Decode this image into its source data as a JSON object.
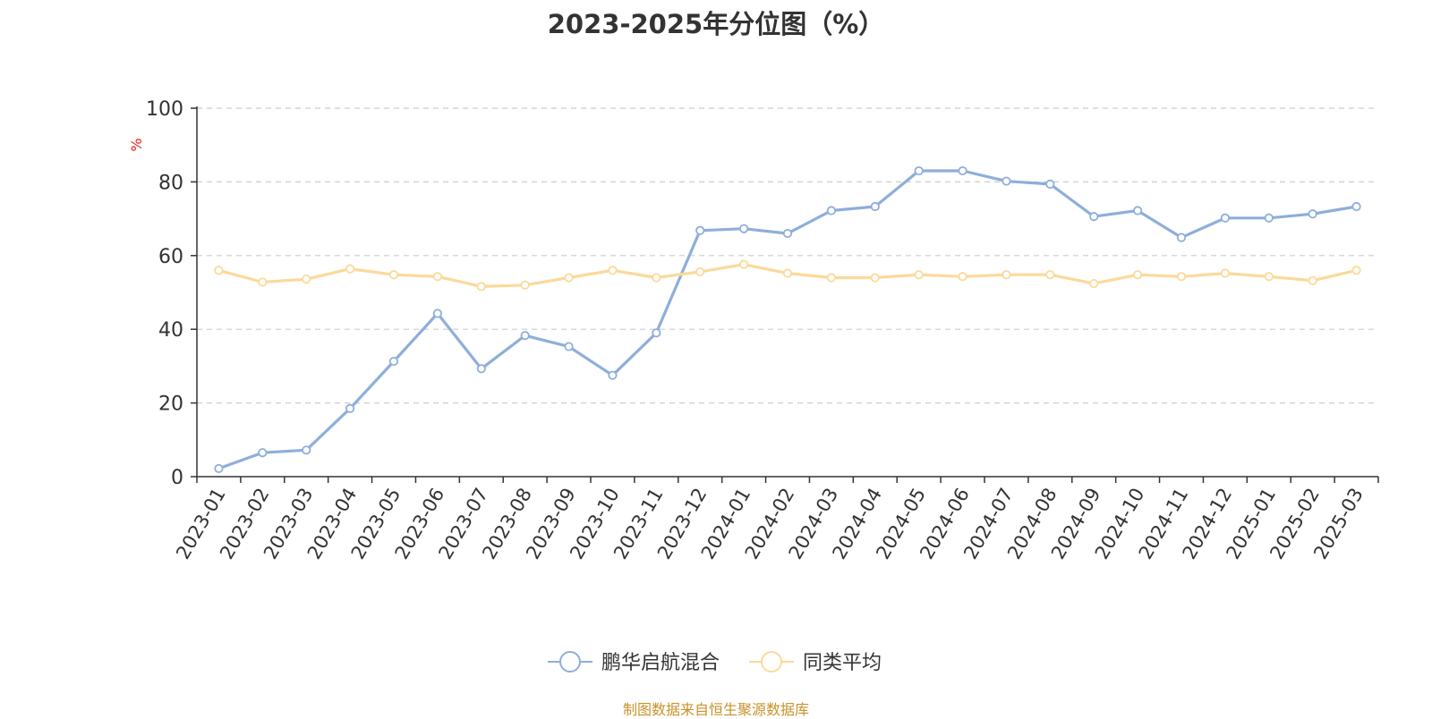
{
  "chart_data": {
    "type": "line",
    "title": "2023-2025年分位图（%）",
    "ylabel": "%",
    "ylim": [
      0,
      100
    ],
    "yticks": [
      0,
      20,
      40,
      60,
      80,
      100
    ],
    "grid": "horizontal dashed",
    "legend_position": "bottom-center",
    "categories": [
      "2023-01",
      "2023-02",
      "2023-03",
      "2023-04",
      "2023-05",
      "2023-06",
      "2023-07",
      "2023-08",
      "2023-09",
      "2023-10",
      "2023-11",
      "2023-12",
      "2024-01",
      "2024-02",
      "2024-03",
      "2024-04",
      "2024-05",
      "2024-06",
      "2024-07",
      "2024-08",
      "2024-09",
      "2024-10",
      "2024-11",
      "2024-12",
      "2025-01",
      "2025-02",
      "2025-03"
    ],
    "series": [
      {
        "name": "鹏华启航混合",
        "color": "#8eaedb",
        "values": [
          2.2,
          6.5,
          7.2,
          18.5,
          31.3,
          44.3,
          29.3,
          38.3,
          35.3,
          27.5,
          39.0,
          66.8,
          67.3,
          66.0,
          72.2,
          73.3,
          83.0,
          83.0,
          80.2,
          79.4,
          70.6,
          72.2,
          64.9,
          70.2,
          70.2,
          71.3,
          73.3
        ]
      },
      {
        "name": "同类平均",
        "color": "#fcd99a",
        "values": [
          56.0,
          52.8,
          53.6,
          56.4,
          54.8,
          54.3,
          51.6,
          52.0,
          54.0,
          56.0,
          54.0,
          55.6,
          57.6,
          55.2,
          54.0,
          54.0,
          54.8,
          54.3,
          54.8,
          54.8,
          52.4,
          54.8,
          54.3,
          55.2,
          54.3,
          53.2,
          56.0
        ]
      }
    ]
  },
  "source_note": "制图数据来自恒生聚源数据库"
}
